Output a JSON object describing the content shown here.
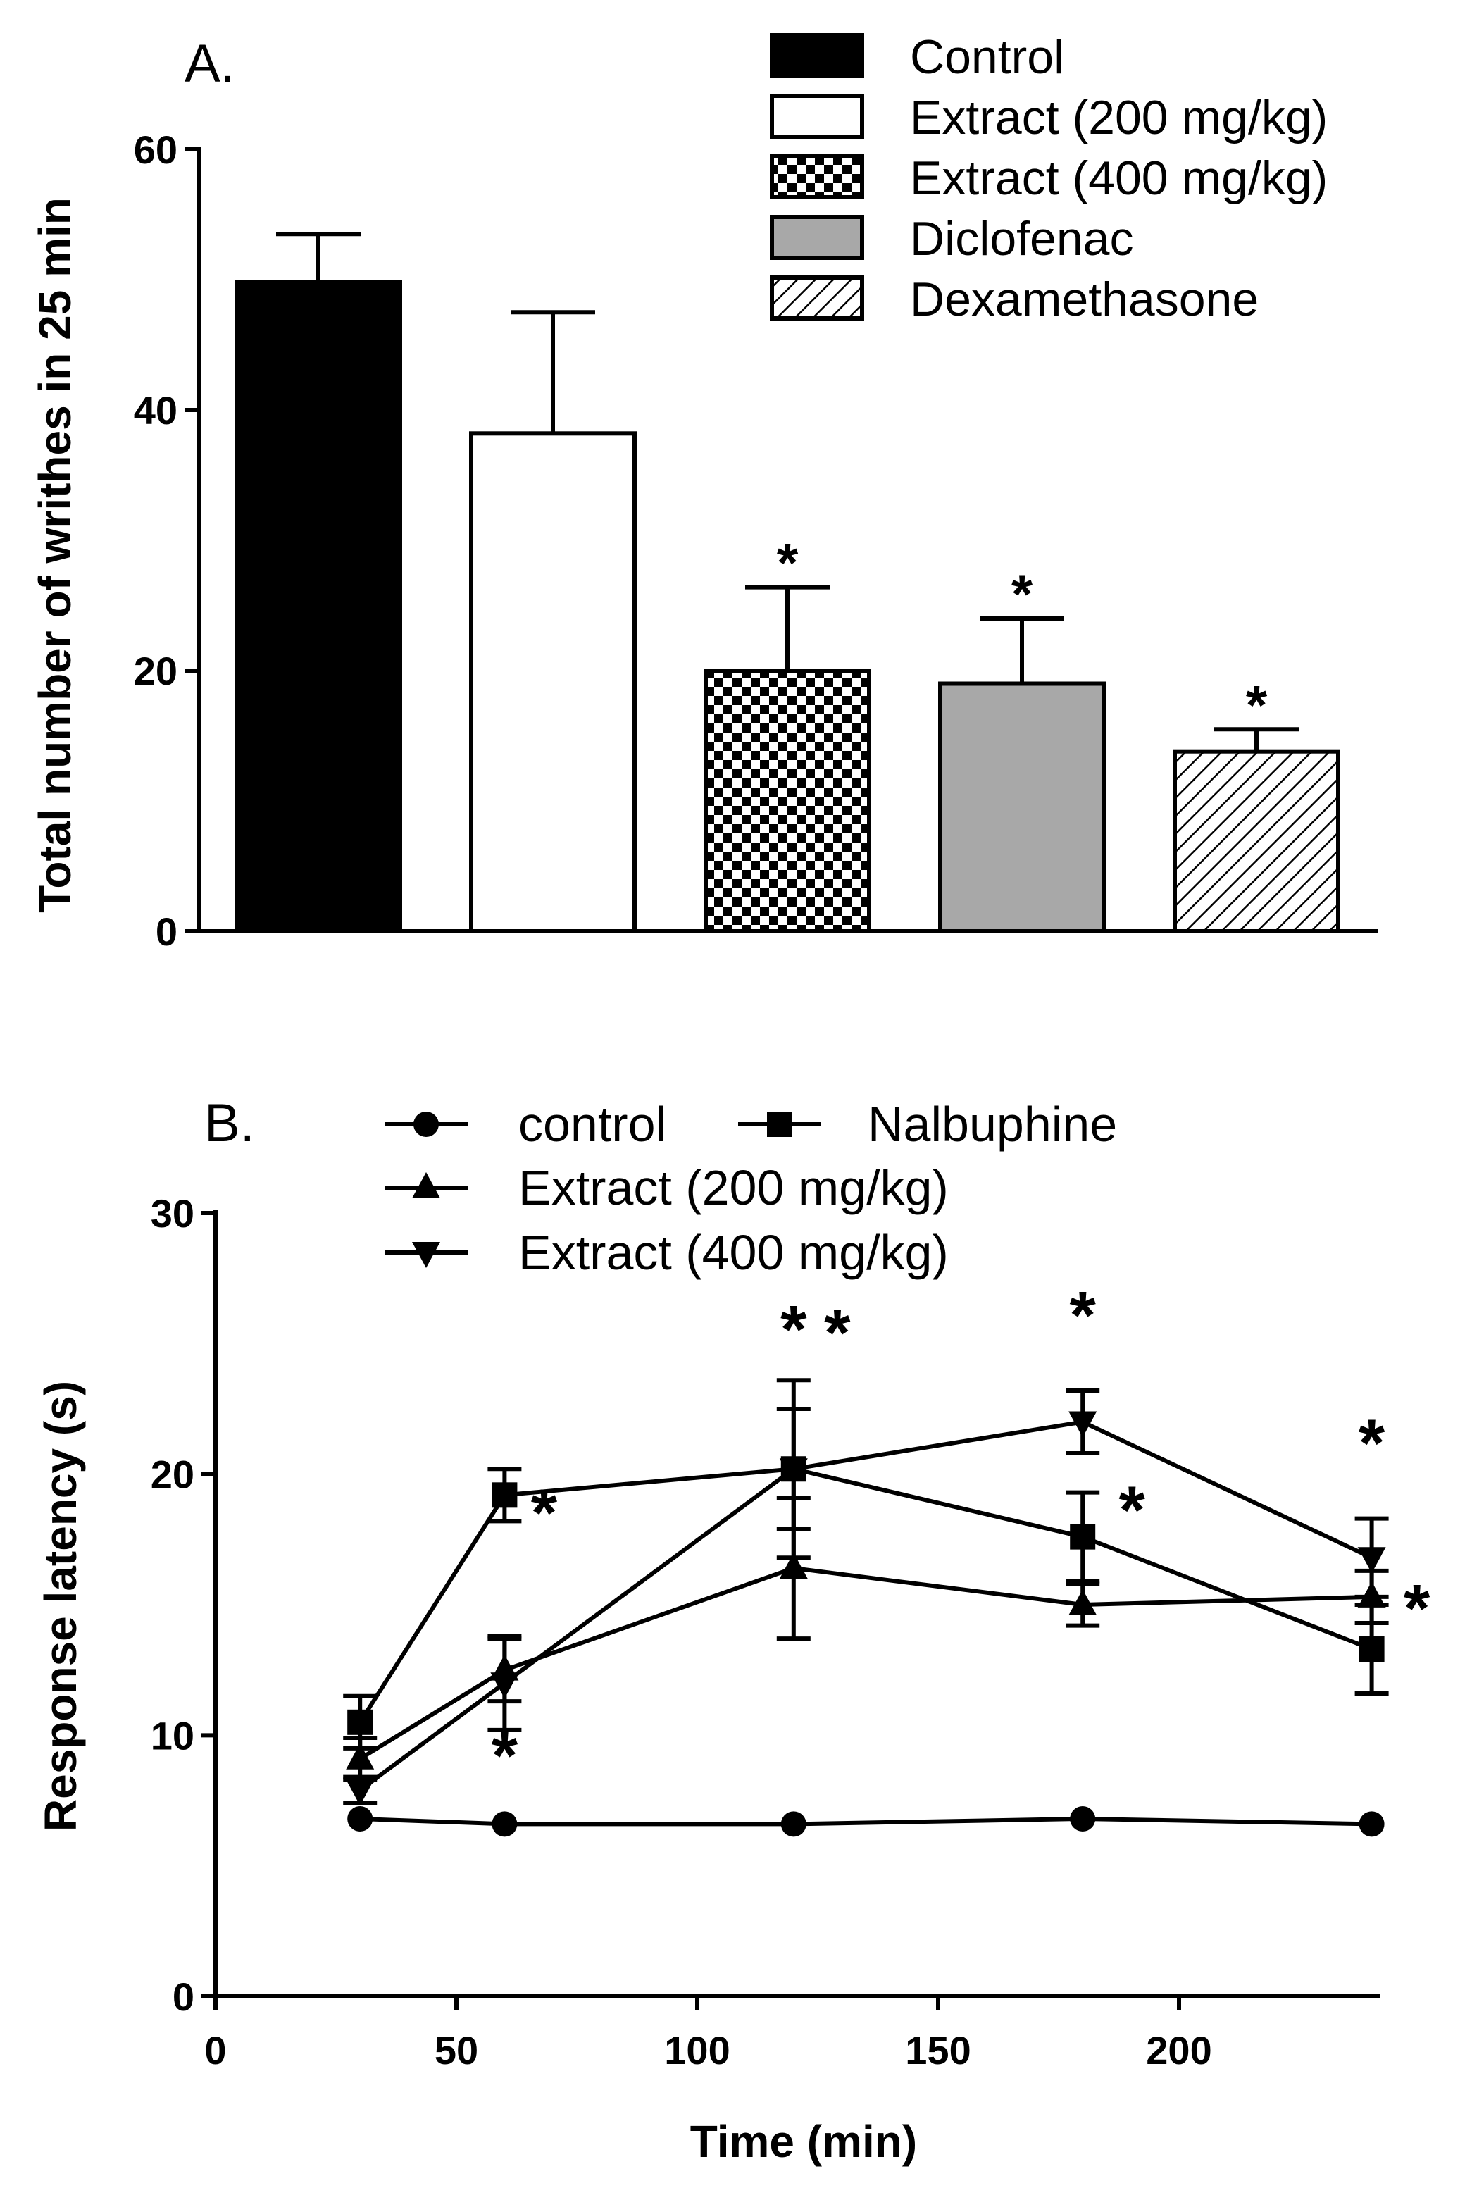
{
  "chart_data": [
    {
      "panel": "A.",
      "type": "bar",
      "title": "",
      "xlabel": "",
      "ylabel": "Total number of writhes in 25 min",
      "ylim": [
        0,
        60
      ],
      "yticks": [
        0,
        20,
        40,
        60
      ],
      "grid": false,
      "legend_position": "top-right",
      "categories": [
        "Control",
        "Extract (200 mg/kg)",
        "Extract (400 mg/kg)",
        "Diclofenac",
        "Dexamethasone"
      ],
      "values": [
        49.8,
        38.2,
        20.0,
        19.0,
        13.8
      ],
      "errors": [
        3.7,
        9.3,
        6.4,
        5.0,
        1.7
      ],
      "significance": [
        "",
        "",
        "*",
        "*",
        "*"
      ],
      "fills": [
        "black",
        "white",
        "checker",
        "gray",
        "hatch"
      ]
    },
    {
      "panel": "B.",
      "type": "line",
      "title": "",
      "xlabel": "Time (min)",
      "ylabel": "Response latency (s)",
      "xlim": [
        0,
        245
      ],
      "ylim": [
        0,
        30
      ],
      "xticks": [
        0,
        50,
        100,
        150,
        200
      ],
      "yticks": [
        0,
        10,
        20,
        30
      ],
      "grid": false,
      "legend_position": "top",
      "x": [
        30,
        60,
        120,
        180,
        240
      ],
      "series": [
        {
          "name": "control",
          "marker": "circle",
          "values": [
            6.8,
            6.6,
            6.6,
            6.8,
            6.6
          ],
          "errors": [
            0.2,
            0.2,
            0.2,
            0.2,
            0.2
          ],
          "significance": [
            "",
            "",
            "",
            "",
            ""
          ]
        },
        {
          "name": "Nalbuphine",
          "marker": "square",
          "values": [
            10.5,
            19.2,
            20.2,
            17.6,
            13.3
          ],
          "errors": [
            1.0,
            1.0,
            3.4,
            1.7,
            1.7
          ],
          "significance": [
            "",
            "*",
            "*",
            "*",
            "*"
          ]
        },
        {
          "name": "Extract (200 mg/kg)",
          "marker": "triangle-up",
          "values": [
            9.1,
            12.5,
            16.4,
            15.0,
            15.3
          ],
          "errors": [
            0.8,
            1.2,
            2.7,
            0.8,
            1.0
          ],
          "significance": [
            "",
            "*",
            "",
            "",
            ""
          ]
        },
        {
          "name": "Extract (400 mg/kg)",
          "marker": "triangle-down",
          "values": [
            7.9,
            12.0,
            20.2,
            22.0,
            16.8
          ],
          "errors": [
            0.5,
            1.8,
            2.3,
            1.2,
            1.5
          ],
          "significance": [
            "",
            "",
            "*",
            "*",
            "*"
          ]
        }
      ]
    }
  ]
}
